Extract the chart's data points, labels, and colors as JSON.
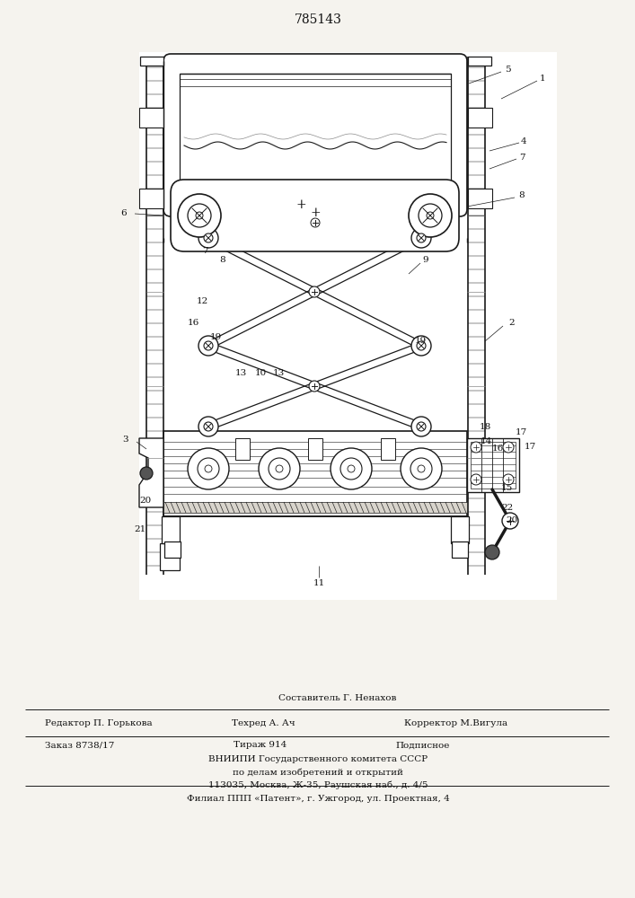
{
  "title": "785143",
  "bg": "#f5f3ee",
  "lc": "#1a1a1a",
  "line1_top": "Составитель Г. Ненахов",
  "line1_left": "Редактор П. Горькова",
  "line1_center": "Техред А. Ач",
  "line1_right": "Корректор М.Вигула",
  "line2_left": "Заказ 8738/17",
  "line2_center": "Тираж 914",
  "line2_right": "Подписное",
  "line3": "ВНИИПИ Государственного комитета СССР",
  "line4": "по делам изобретений и открытий",
  "line5": "113035, Москва, Ж-35, Раушская наб., д. 4/5",
  "line6": "Филиал ППП «Патент», г. Ужгород, ул. Проектная, 4"
}
